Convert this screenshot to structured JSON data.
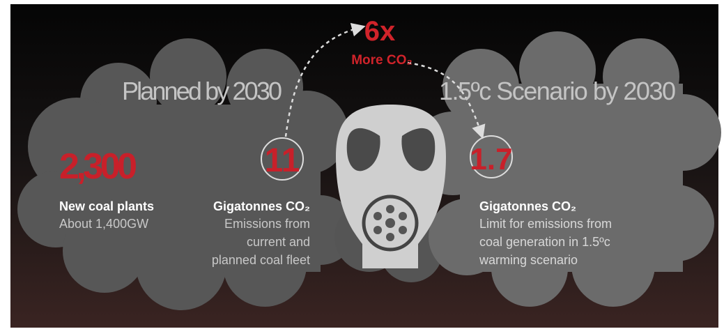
{
  "left": {
    "heading": "Planned by 2030",
    "plants": {
      "value": "2,300",
      "label": "New coal plants",
      "note": "About 1,400GW"
    },
    "emissions": {
      "value": "11",
      "label": "Gigatonnes CO₂",
      "note": [
        "Emissions from",
        "current and",
        "planned coal fleet"
      ]
    }
  },
  "center": {
    "multiplier": "6x",
    "label": "More CO₂"
  },
  "right": {
    "heading": "1.5ºc Scenario by 2030",
    "emissions": {
      "value": "1.7",
      "label": "Gigatonnes CO₂",
      "note": [
        "Limit for emissions from",
        "coal generation in 1.5ºc",
        "warming scenario"
      ]
    }
  }
}
